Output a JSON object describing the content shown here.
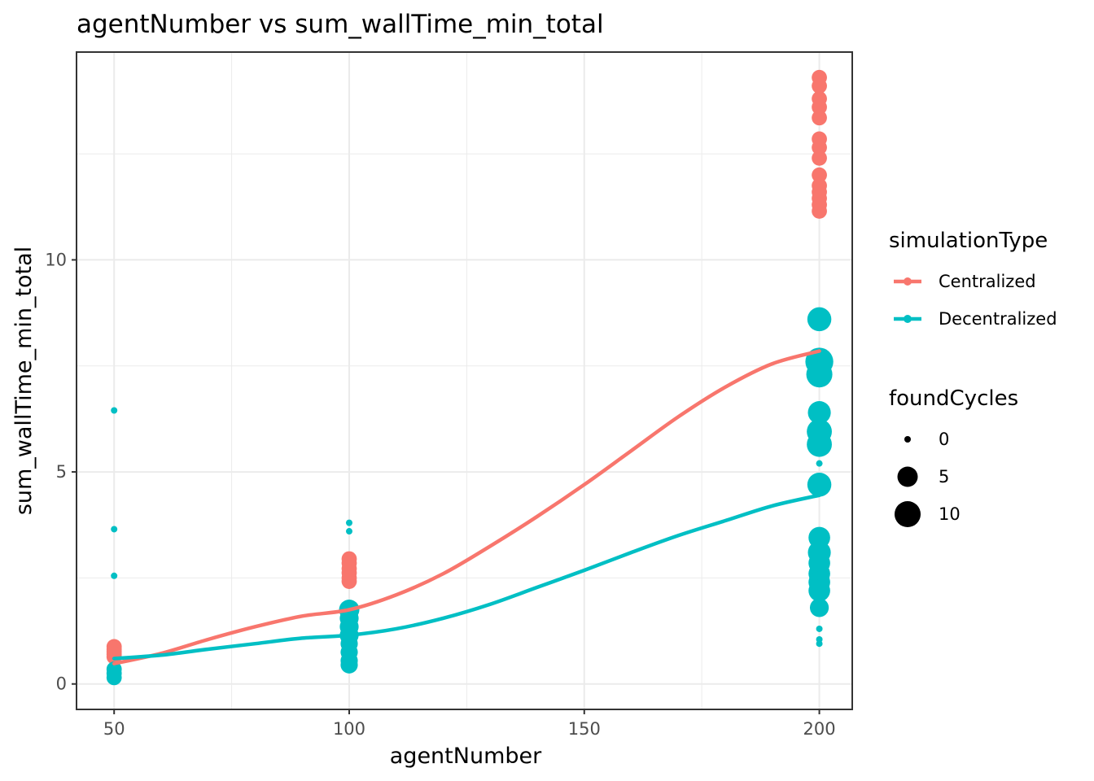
{
  "chart_data": {
    "type": "scatter",
    "title": "agentNumber  vs  sum_wallTime_min_total",
    "xlabel": "agentNumber",
    "ylabel": "sum_wallTime_min_total",
    "xlim": [
      42,
      207
    ],
    "ylim": [
      -0.6,
      14.9
    ],
    "x_ticks": [
      50,
      100,
      150,
      200
    ],
    "x_tick_labels": [
      "50",
      "100",
      "150",
      "200"
    ],
    "y_ticks": [
      0,
      5,
      10
    ],
    "y_tick_labels": [
      "0",
      "5",
      "10"
    ],
    "grid": true,
    "legend_placement": "right",
    "legend": {
      "color_title": "simulationType",
      "size_title": "foundCycles",
      "size_entries": [
        {
          "label": "0",
          "value": 0
        },
        {
          "label": "5",
          "value": 5
        },
        {
          "label": "10",
          "value": 10
        }
      ]
    },
    "series": [
      {
        "name": "Centralized",
        "color": "#F8766D",
        "points": [
          {
            "x": 50,
            "y": 0.88,
            "size": 2
          },
          {
            "x": 50,
            "y": 0.82,
            "size": 2
          },
          {
            "x": 50,
            "y": 0.76,
            "size": 2
          },
          {
            "x": 50,
            "y": 0.7,
            "size": 2
          },
          {
            "x": 50,
            "y": 0.64,
            "size": 2
          },
          {
            "x": 100,
            "y": 2.95,
            "size": 2
          },
          {
            "x": 100,
            "y": 2.85,
            "size": 2
          },
          {
            "x": 100,
            "y": 2.72,
            "size": 2
          },
          {
            "x": 100,
            "y": 2.62,
            "size": 2
          },
          {
            "x": 100,
            "y": 2.5,
            "size": 2
          },
          {
            "x": 100,
            "y": 2.42,
            "size": 2
          },
          {
            "x": 100,
            "y": 0.62,
            "size": 2
          },
          {
            "x": 200,
            "y": 14.3,
            "size": 2
          },
          {
            "x": 200,
            "y": 14.1,
            "size": 2
          },
          {
            "x": 200,
            "y": 13.8,
            "size": 2
          },
          {
            "x": 200,
            "y": 13.6,
            "size": 2
          },
          {
            "x": 200,
            "y": 13.35,
            "size": 2
          },
          {
            "x": 200,
            "y": 12.85,
            "size": 2
          },
          {
            "x": 200,
            "y": 12.65,
            "size": 2
          },
          {
            "x": 200,
            "y": 12.4,
            "size": 2
          },
          {
            "x": 200,
            "y": 12.0,
            "size": 2
          },
          {
            "x": 200,
            "y": 11.75,
            "size": 2
          },
          {
            "x": 200,
            "y": 11.6,
            "size": 2
          },
          {
            "x": 200,
            "y": 11.45,
            "size": 2
          },
          {
            "x": 200,
            "y": 11.3,
            "size": 2
          },
          {
            "x": 200,
            "y": 11.15,
            "size": 2
          },
          {
            "x": 200,
            "y": 3.35,
            "size": 1
          }
        ],
        "smooth": [
          {
            "x": 50,
            "y": 0.48
          },
          {
            "x": 60,
            "y": 0.72
          },
          {
            "x": 70,
            "y": 1.05
          },
          {
            "x": 80,
            "y": 1.35
          },
          {
            "x": 90,
            "y": 1.6
          },
          {
            "x": 100,
            "y": 1.75
          },
          {
            "x": 110,
            "y": 2.1
          },
          {
            "x": 120,
            "y": 2.6
          },
          {
            "x": 130,
            "y": 3.25
          },
          {
            "x": 140,
            "y": 3.95
          },
          {
            "x": 150,
            "y": 4.7
          },
          {
            "x": 160,
            "y": 5.5
          },
          {
            "x": 170,
            "y": 6.3
          },
          {
            "x": 180,
            "y": 7.0
          },
          {
            "x": 190,
            "y": 7.55
          },
          {
            "x": 200,
            "y": 7.85
          }
        ]
      },
      {
        "name": "Decentralized",
        "color": "#00BFC4",
        "points": [
          {
            "x": 50,
            "y": 6.45,
            "size": 0
          },
          {
            "x": 50,
            "y": 3.65,
            "size": 0
          },
          {
            "x": 50,
            "y": 2.55,
            "size": 0
          },
          {
            "x": 50,
            "y": 0.35,
            "size": 2
          },
          {
            "x": 50,
            "y": 0.25,
            "size": 2
          },
          {
            "x": 50,
            "y": 0.15,
            "size": 2
          },
          {
            "x": 100,
            "y": 3.8,
            "size": 0
          },
          {
            "x": 100,
            "y": 3.6,
            "size": 0
          },
          {
            "x": 100,
            "y": 1.75,
            "size": 5
          },
          {
            "x": 100,
            "y": 1.55,
            "size": 4
          },
          {
            "x": 100,
            "y": 1.35,
            "size": 4
          },
          {
            "x": 100,
            "y": 1.15,
            "size": 4
          },
          {
            "x": 100,
            "y": 0.95,
            "size": 3
          },
          {
            "x": 100,
            "y": 0.75,
            "size": 3
          },
          {
            "x": 100,
            "y": 0.55,
            "size": 3
          },
          {
            "x": 100,
            "y": 0.45,
            "size": 3
          },
          {
            "x": 200,
            "y": 8.6,
            "size": 8
          },
          {
            "x": 200,
            "y": 7.6,
            "size": 12
          },
          {
            "x": 200,
            "y": 7.3,
            "size": 10
          },
          {
            "x": 200,
            "y": 6.4,
            "size": 7
          },
          {
            "x": 200,
            "y": 5.95,
            "size": 9
          },
          {
            "x": 200,
            "y": 5.65,
            "size": 9
          },
          {
            "x": 200,
            "y": 5.2,
            "size": 0
          },
          {
            "x": 200,
            "y": 4.7,
            "size": 8
          },
          {
            "x": 200,
            "y": 3.45,
            "size": 6
          },
          {
            "x": 200,
            "y": 3.1,
            "size": 7
          },
          {
            "x": 200,
            "y": 2.85,
            "size": 6
          },
          {
            "x": 200,
            "y": 2.6,
            "size": 6
          },
          {
            "x": 200,
            "y": 2.4,
            "size": 6
          },
          {
            "x": 200,
            "y": 2.2,
            "size": 6
          },
          {
            "x": 200,
            "y": 1.8,
            "size": 4
          },
          {
            "x": 200,
            "y": 1.3,
            "size": 0
          },
          {
            "x": 200,
            "y": 1.05,
            "size": 0
          },
          {
            "x": 200,
            "y": 0.95,
            "size": 0
          }
        ],
        "smooth": [
          {
            "x": 50,
            "y": 0.6
          },
          {
            "x": 60,
            "y": 0.68
          },
          {
            "x": 70,
            "y": 0.82
          },
          {
            "x": 80,
            "y": 0.95
          },
          {
            "x": 90,
            "y": 1.08
          },
          {
            "x": 100,
            "y": 1.15
          },
          {
            "x": 110,
            "y": 1.3
          },
          {
            "x": 120,
            "y": 1.55
          },
          {
            "x": 130,
            "y": 1.88
          },
          {
            "x": 140,
            "y": 2.28
          },
          {
            "x": 150,
            "y": 2.68
          },
          {
            "x": 160,
            "y": 3.1
          },
          {
            "x": 170,
            "y": 3.5
          },
          {
            "x": 180,
            "y": 3.85
          },
          {
            "x": 190,
            "y": 4.2
          },
          {
            "x": 200,
            "y": 4.45
          }
        ]
      }
    ]
  }
}
